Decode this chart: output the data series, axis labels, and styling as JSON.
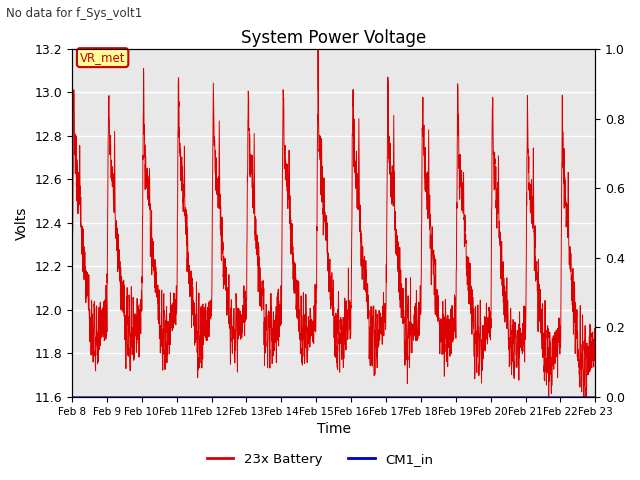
{
  "title": "System Power Voltage",
  "subtitle": "No data for f_Sys_volt1",
  "ylabel_left": "Volts",
  "xlabel": "Time",
  "ylim_left": [
    11.6,
    13.2
  ],
  "ylim_right": [
    0.0,
    1.0
  ],
  "yticks_left": [
    11.6,
    11.8,
    12.0,
    12.2,
    12.4,
    12.6,
    12.8,
    13.0,
    13.2
  ],
  "yticks_right": [
    0.0,
    0.2,
    0.4,
    0.6,
    0.8,
    1.0
  ],
  "xtick_labels": [
    "Feb 8",
    "Feb 9",
    "Feb 10",
    "Feb 11",
    "Feb 12",
    "Feb 13",
    "Feb 14",
    "Feb 15",
    "Feb 16",
    "Feb 17",
    "Feb 18",
    "Feb 19",
    "Feb 20",
    "Feb 21",
    "Feb 22",
    "Feb 23"
  ],
  "annotation_text": "VR_met",
  "annotation_color": "#cc0000",
  "annotation_bg": "#ffff99",
  "line_color": "#dd0000",
  "line2_color": "#0000cc",
  "legend_labels": [
    "23x Battery",
    "CM1_in"
  ],
  "fig_bg": "#ffffff",
  "plot_bg": "#e8e8e8",
  "num_cycles": 15,
  "n_days": 15,
  "seed": 7
}
